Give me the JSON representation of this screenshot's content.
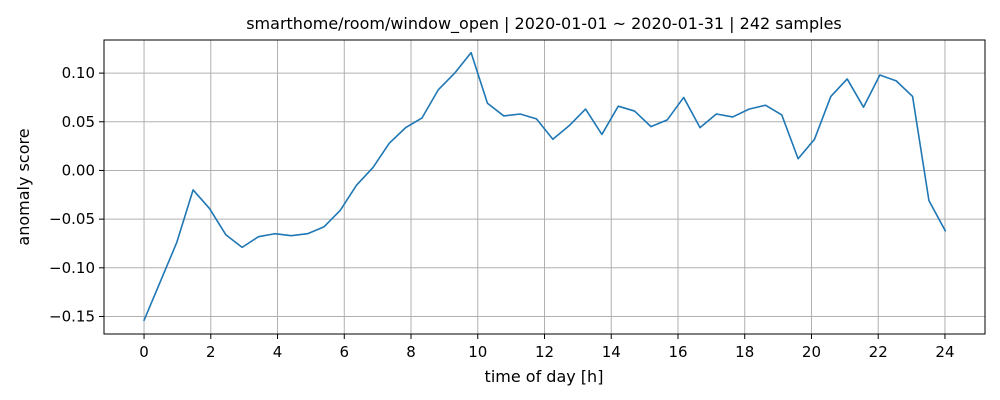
{
  "chart_data": {
    "type": "line",
    "title": "smarthome/room/window_open | 2020-01-01 ~ 2020-01-31 | 242 samples",
    "xlabel": "time of day [h]",
    "ylabel": "anomaly score",
    "xlim": [
      -1.2,
      25.2
    ],
    "ylim": [
      -0.168,
      0.134
    ],
    "xticks": [
      0,
      2,
      4,
      6,
      8,
      10,
      12,
      14,
      16,
      18,
      20,
      22,
      24
    ],
    "yticks": [
      -0.15,
      -0.1,
      -0.05,
      0.0,
      0.05,
      0.1
    ],
    "ytick_labels": [
      "−0.15",
      "−0.10",
      "−0.05",
      "0.00",
      "0.05",
      "0.10"
    ],
    "grid": true,
    "series": [
      {
        "color": "#1f77b4",
        "x": [
          0,
          0.49,
          0.98,
          1.47,
          1.96,
          2.45,
          2.94,
          3.43,
          3.92,
          4.41,
          4.9,
          5.39,
          5.88,
          6.37,
          6.86,
          7.35,
          7.84,
          8.33,
          8.82,
          9.31,
          9.8,
          10.29,
          10.78,
          11.27,
          11.76,
          12.25,
          12.74,
          13.23,
          13.72,
          14.21,
          14.7,
          15.19,
          15.68,
          16.17,
          16.66,
          17.15,
          17.64,
          18.13,
          18.62,
          19.11,
          19.6,
          20.09,
          20.58,
          21.07,
          21.56,
          22.05,
          22.54,
          23.03,
          23.52,
          24.01
        ],
        "y": [
          -0.154,
          -0.114,
          -0.074,
          -0.02,
          -0.039,
          -0.066,
          -0.079,
          -0.068,
          -0.065,
          -0.067,
          -0.065,
          -0.058,
          -0.041,
          -0.015,
          0.003,
          0.028,
          0.044,
          0.054,
          0.083,
          0.1,
          0.121,
          0.069,
          0.056,
          0.058,
          0.053,
          0.032,
          0.046,
          0.063,
          0.037,
          0.066,
          0.061,
          0.045,
          0.052,
          0.075,
          0.044,
          0.058,
          0.055,
          0.063,
          0.067,
          0.057,
          0.012,
          0.032,
          0.076,
          0.094,
          0.065,
          0.098,
          0.092,
          0.076,
          -0.031,
          -0.062
        ]
      }
    ]
  }
}
